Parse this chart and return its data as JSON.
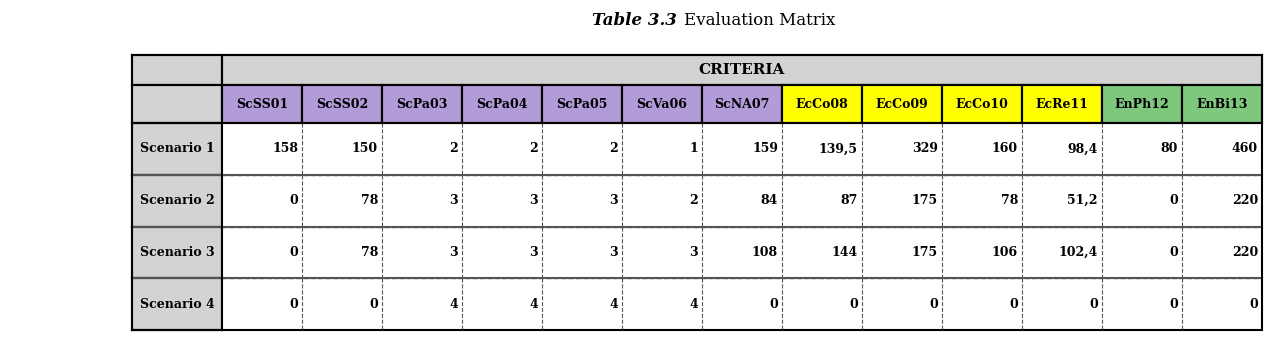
{
  "title1": "Table 3.3",
  "title2": "Evaluation Matrix",
  "criteria_header": "CRITERIA",
  "col_headers": [
    "ScSS01",
    "ScSS02",
    "ScPa03",
    "ScPa04",
    "ScPa05",
    "ScVa06",
    "ScNA07",
    "EcCo08",
    "EcCo09",
    "EcCo10",
    "EcRe11",
    "EnPh12",
    "EnBi13"
  ],
  "col_colors": [
    "#b19cd9",
    "#b19cd9",
    "#b19cd9",
    "#b19cd9",
    "#b19cd9",
    "#b19cd9",
    "#b19cd9",
    "#ffff00",
    "#ffff00",
    "#ffff00",
    "#ffff00",
    "#7dc87d",
    "#7dc87d"
  ],
  "row_headers": [
    "Scenario 1",
    "Scenario 2",
    "Scenario 3",
    "Scenario 4"
  ],
  "data": [
    [
      "158",
      "150",
      "2",
      "2",
      "2",
      "1",
      "159",
      "139,5",
      "329",
      "160",
      "98,4",
      "80",
      "460"
    ],
    [
      "0",
      "78",
      "3",
      "3",
      "3",
      "2",
      "84",
      "87",
      "175",
      "78",
      "51,2",
      "0",
      "220"
    ],
    [
      "0",
      "78",
      "3",
      "3",
      "3",
      "3",
      "108",
      "144",
      "175",
      "106",
      "102,4",
      "0",
      "220"
    ],
    [
      "0",
      "0",
      "4",
      "4",
      "4",
      "4",
      "0",
      "0",
      "0",
      "0",
      "0",
      "0",
      "0"
    ]
  ],
  "criteria_bg": "#d3d3d3",
  "row_header_bg": "#d3d3d3",
  "cell_bg": "#ffffff",
  "title_fontsize": 12,
  "header_fontsize": 9,
  "cell_fontsize": 9
}
